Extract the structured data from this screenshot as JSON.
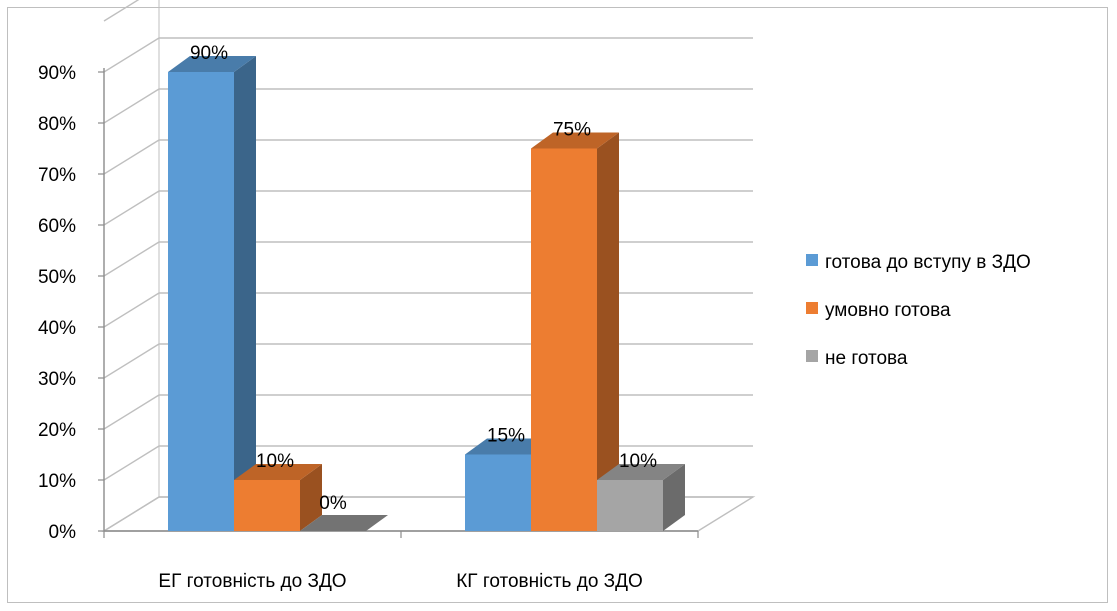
{
  "chart_data": {
    "type": "bar",
    "style": "3d-clustered-column",
    "categories": [
      "ЕГ готовність до ЗДО",
      "КГ готовність до ЗДО"
    ],
    "series": [
      {
        "name": "готова до вступу в ЗДО",
        "values": [
          90,
          15
        ],
        "color": "#5b9bd5"
      },
      {
        "name": "умовно готова",
        "values": [
          10,
          75
        ],
        "color": "#ed7d31"
      },
      {
        "name": "не готова",
        "values": [
          0,
          10
        ],
        "color": "#a5a5a5"
      }
    ],
    "data_labels": [
      [
        "90%",
        "15%"
      ],
      [
        "10%",
        "75%"
      ],
      [
        "0%",
        "10%"
      ]
    ],
    "y_ticks": [
      0,
      10,
      20,
      30,
      40,
      50,
      60,
      70,
      80,
      90
    ],
    "y_tick_labels": [
      "0%",
      "10%",
      "20%",
      "30%",
      "40%",
      "50%",
      "60%",
      "70%",
      "80%",
      "90%"
    ],
    "ylim": [
      0,
      90
    ],
    "y_unit": "%",
    "grid": true,
    "legend_position": "right",
    "title": "",
    "xlabel": "",
    "ylabel": ""
  }
}
